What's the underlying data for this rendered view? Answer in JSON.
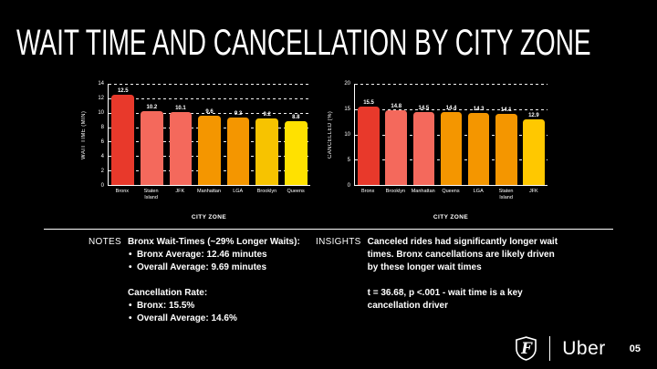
{
  "slide": {
    "title": "WAIT TIME AND CANCELLATION BY CITY ZONE"
  },
  "colors": {
    "background": "#000000",
    "text": "#FFFFFF",
    "bar_red": "#E8392B",
    "bar_salmon": "#F4695C",
    "bar_orange": "#F49600",
    "bar_gold": "#F7C300",
    "bar_yellow": "#FFE100",
    "bar_golden_yellow": "#FFC800"
  },
  "chart_data": [
    {
      "type": "bar",
      "title": "",
      "categories": [
        "Bronx",
        "Staten Island",
        "JFK",
        "Manhattan",
        "LGA",
        "Brooklyn",
        "Queens"
      ],
      "values": [
        12.5,
        10.2,
        10.1,
        9.6,
        9.3,
        9.2,
        8.8
      ],
      "bar_colors": [
        "#E8392B",
        "#F4695C",
        "#F4695C",
        "#F49600",
        "#F49600",
        "#F7C300",
        "#FFE100"
      ],
      "xlabel": "CITY ZONE",
      "ylabel": "WAIT TIME (MIN)",
      "ylim": [
        0,
        14
      ],
      "yticks": [
        0,
        2,
        4,
        6,
        8,
        10,
        12,
        14
      ],
      "grid": "dashed-horizontal",
      "legend": "none"
    },
    {
      "type": "bar",
      "title": "",
      "categories": [
        "Bronx",
        "Brooklyn",
        "Manhattan",
        "Queens",
        "LGA",
        "Staten Island",
        "JFK"
      ],
      "values": [
        15.5,
        14.8,
        14.5,
        14.4,
        14.3,
        14.1,
        12.9
      ],
      "bar_colors": [
        "#E8392B",
        "#F4695C",
        "#F4695C",
        "#F49600",
        "#F49600",
        "#F49600",
        "#FFC800"
      ],
      "xlabel": "CITY ZONE",
      "ylabel": "CANCELLED (%)",
      "ylim": [
        0,
        20
      ],
      "yticks": [
        0,
        5,
        10,
        15,
        20
      ],
      "grid": "dashed-horizontal",
      "legend": "none"
    }
  ],
  "notes": {
    "label": "NOTES",
    "sections": [
      {
        "heading": "Bronx Wait-Times (~29% Longer Waits):",
        "bullets": [
          "Bronx Average: 12.46 minutes",
          "Overall Average: 9.69 minutes"
        ]
      },
      {
        "heading": "Cancellation Rate:",
        "bullets": [
          "Bronx: 15.5%",
          "Overall Average: 14.6%"
        ]
      }
    ]
  },
  "insights": {
    "label": "INSIGHTS",
    "paragraphs": [
      "Canceled rides had significantly longer wait times. Bronx cancellations are likely driven by these longer wait times",
      "t = 36.68, p <.001 -  wait time is a key cancellation driver"
    ]
  },
  "footer": {
    "logo": "fraternity-shield-logo",
    "brand": "Uber",
    "page_number": "05"
  }
}
